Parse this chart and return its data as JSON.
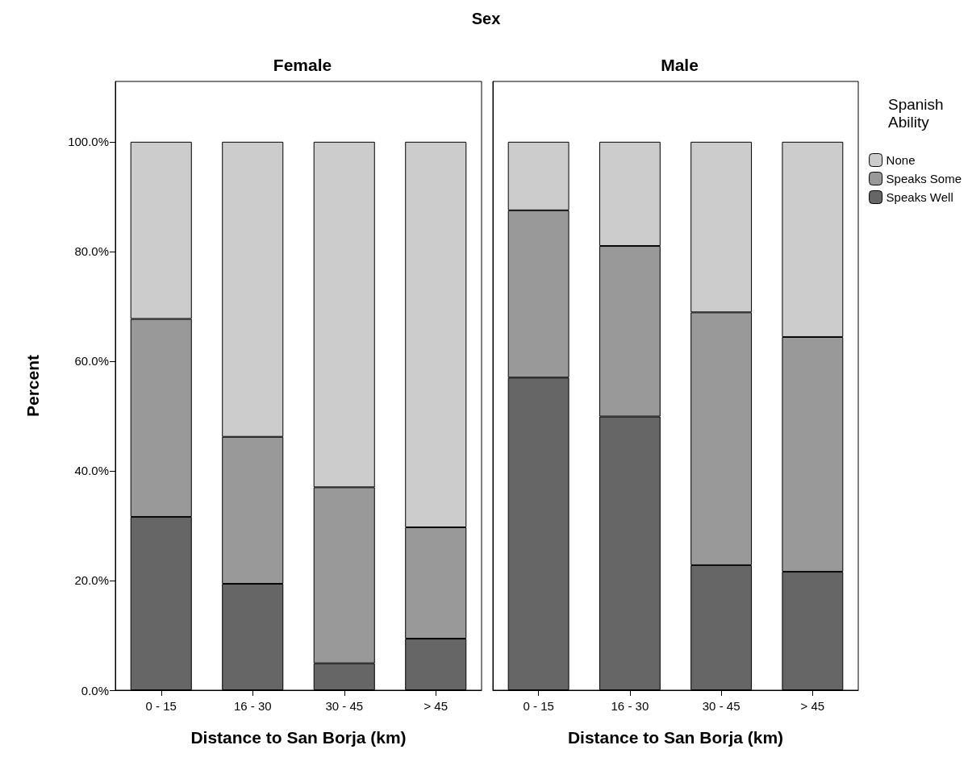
{
  "chart_data": [
    {
      "type": "bar",
      "title": "Female",
      "xlabel": "Distance to San Borja (km)",
      "ylabel": "Percent",
      "annotations": [
        "Sex"
      ],
      "categories": [
        "0 - 15",
        "16 - 30",
        "30 - 45",
        "> 45"
      ],
      "stacked": true,
      "ylim": [
        0,
        111
      ],
      "yticks": [
        {
          "value": 0,
          "label": "0.0%"
        },
        {
          "value": 20,
          "label": "20.0%"
        },
        {
          "value": 40,
          "label": "40.0%"
        },
        {
          "value": 60,
          "label": "60.0%"
        },
        {
          "value": 80,
          "label": "80.0%"
        },
        {
          "value": 100,
          "label": "100.0%"
        }
      ],
      "grid": false,
      "legend": false,
      "series": [
        {
          "color": "#666666",
          "values": [
            31.6,
            19.4,
            4.9,
            9.4
          ]
        },
        {
          "color": "#999999",
          "values": [
            36.1,
            26.8,
            32.1,
            20.3
          ]
        },
        {
          "color": "#cccccc",
          "values": [
            32.3,
            53.8,
            63.0,
            70.3
          ]
        }
      ]
    },
    {
      "type": "bar",
      "title": "Male",
      "xlabel": "Distance to San Borja (km)",
      "legend_title": "Spanish Ability",
      "categories": [
        "0 - 15",
        "16 - 30",
        "30 - 45",
        "> 45"
      ],
      "stacked": true,
      "ylim": [
        0,
        111
      ],
      "grid": false,
      "legend": "top right",
      "tick_labels": "x",
      "series": [
        {
          "name": "Speaks Well",
          "color": "#666666",
          "values": [
            57.0,
            49.9,
            22.8,
            21.6
          ]
        },
        {
          "name": "Speaks Some",
          "color": "#999999",
          "values": [
            30.5,
            31.1,
            46.1,
            42.8
          ]
        },
        {
          "name": "None",
          "color": "#cccccc",
          "values": [
            12.5,
            19.0,
            31.1,
            35.6
          ]
        }
      ]
    }
  ]
}
